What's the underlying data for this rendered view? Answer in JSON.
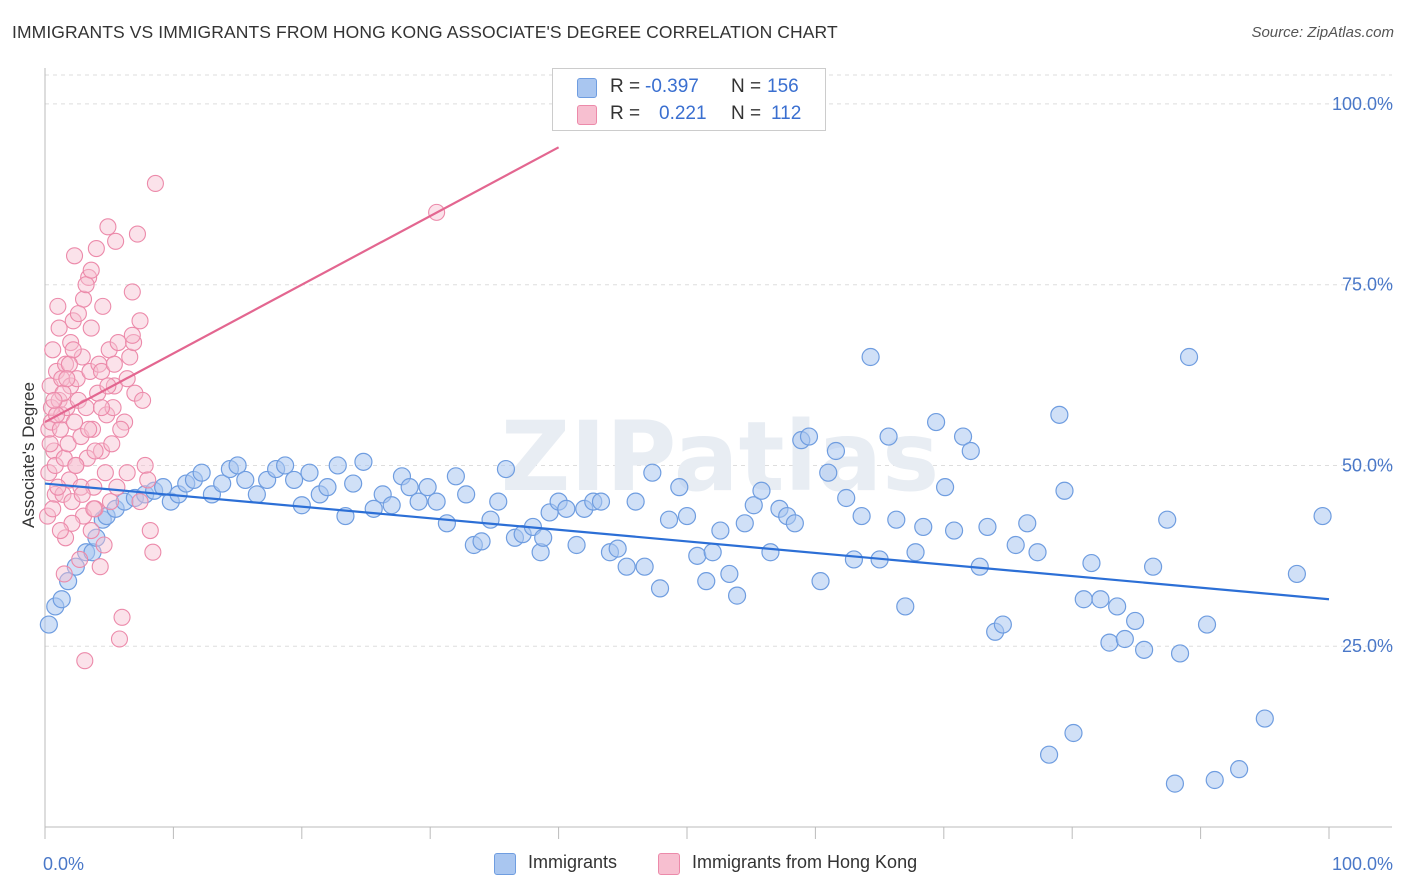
{
  "title": "IMMIGRANTS VS IMMIGRANTS FROM HONG KONG ASSOCIATE'S DEGREE CORRELATION CHART",
  "source": "Source: ZipAtlas.com",
  "watermark": "ZIPatlas",
  "legend": {
    "r_label": "R =",
    "n_label": "N =",
    "rows": [
      {
        "r": "-0.397",
        "n": "156"
      },
      {
        "r": "0.221",
        "n": "112"
      }
    ]
  },
  "chart_data": {
    "type": "scatter",
    "ylabel": "Associate's Degree",
    "xlabel": "",
    "xlim": [
      0,
      100
    ],
    "ylim": [
      0,
      104
    ],
    "x_tick_labels": [
      "0.0%",
      "100.0%"
    ],
    "y_tick_labels": [
      "25.0%",
      "50.0%",
      "75.0%",
      "100.0%"
    ],
    "y_ticks": [
      25,
      50,
      75,
      100
    ],
    "colors": {
      "immigrants_fill": "#a9c6f0",
      "immigrants_stroke": "#6f9de0",
      "immigrants_line": "#2c6fd6",
      "hk_fill": "#f7bfd0",
      "hk_stroke": "#ec8aaa",
      "hk_line": "#e36690"
    },
    "series": [
      {
        "name": "Immigrants",
        "r": -0.397,
        "n": 156,
        "trend": {
          "x0": 0,
          "y0": 47.5,
          "x1": 100,
          "y1": 31.5
        },
        "points": [
          [
            0.3,
            28
          ],
          [
            0.8,
            30.5
          ],
          [
            1.3,
            31.5
          ],
          [
            1.8,
            34
          ],
          [
            2.4,
            36
          ],
          [
            3.2,
            38
          ],
          [
            3.7,
            38
          ],
          [
            4,
            40
          ],
          [
            4.5,
            42.5
          ],
          [
            4.8,
            43
          ],
          [
            5.5,
            44
          ],
          [
            6.2,
            45
          ],
          [
            7,
            45.5
          ],
          [
            7.8,
            46
          ],
          [
            8.5,
            46.5
          ],
          [
            9.2,
            47
          ],
          [
            9.8,
            45
          ],
          [
            10.4,
            46
          ],
          [
            11,
            47.5
          ],
          [
            11.6,
            48
          ],
          [
            12.2,
            49
          ],
          [
            13,
            46
          ],
          [
            13.8,
            47.5
          ],
          [
            14.4,
            49.5
          ],
          [
            15,
            50
          ],
          [
            15.6,
            48
          ],
          [
            16.5,
            46
          ],
          [
            17.3,
            48
          ],
          [
            18,
            49.5
          ],
          [
            18.7,
            50
          ],
          [
            19.4,
            48
          ],
          [
            20,
            44.5
          ],
          [
            20.6,
            49
          ],
          [
            21.4,
            46
          ],
          [
            22,
            47
          ],
          [
            22.8,
            50
          ],
          [
            23.4,
            43
          ],
          [
            24,
            47.5
          ],
          [
            24.8,
            50.5
          ],
          [
            25.6,
            44
          ],
          [
            26.3,
            46
          ],
          [
            27,
            44.5
          ],
          [
            27.8,
            48.5
          ],
          [
            28.4,
            47
          ],
          [
            29.1,
            45
          ],
          [
            29.8,
            47
          ],
          [
            30.5,
            45
          ],
          [
            31.3,
            42
          ],
          [
            32,
            48.5
          ],
          [
            32.8,
            46
          ],
          [
            33.4,
            39
          ],
          [
            34,
            39.5
          ],
          [
            34.7,
            42.5
          ],
          [
            35.3,
            45
          ],
          [
            35.9,
            49.5
          ],
          [
            36.6,
            40
          ],
          [
            37.2,
            40.5
          ],
          [
            38,
            41.5
          ],
          [
            38.6,
            38
          ],
          [
            39.3,
            43.5
          ],
          [
            40,
            45
          ],
          [
            40.6,
            44
          ],
          [
            41.4,
            39
          ],
          [
            42,
            44
          ],
          [
            42.7,
            45
          ],
          [
            43.3,
            45
          ],
          [
            44,
            38
          ],
          [
            44.6,
            38.5
          ],
          [
            45.3,
            36
          ],
          [
            46,
            45
          ],
          [
            46.7,
            36
          ],
          [
            47.3,
            49
          ],
          [
            47.9,
            33
          ],
          [
            48.6,
            42.5
          ],
          [
            49.4,
            47
          ],
          [
            50,
            43
          ],
          [
            50.8,
            37.5
          ],
          [
            51.5,
            34
          ],
          [
            52,
            38
          ],
          [
            52.6,
            41
          ],
          [
            53.3,
            35
          ],
          [
            53.9,
            32
          ],
          [
            54.5,
            42
          ],
          [
            55.2,
            44.5
          ],
          [
            55.8,
            46.5
          ],
          [
            56.5,
            38
          ],
          [
            57.2,
            44
          ],
          [
            57.8,
            43
          ],
          [
            58.4,
            42
          ],
          [
            58.9,
            53.5
          ],
          [
            59.5,
            54
          ],
          [
            60.4,
            34
          ],
          [
            61,
            49
          ],
          [
            61.6,
            52
          ],
          [
            62.4,
            45.5
          ],
          [
            63,
            37
          ],
          [
            63.6,
            43
          ],
          [
            64.3,
            65
          ],
          [
            65,
            37
          ],
          [
            65.7,
            54
          ],
          [
            66.3,
            42.5
          ],
          [
            67,
            30.5
          ],
          [
            67.8,
            38
          ],
          [
            68.4,
            41.5
          ],
          [
            69.4,
            56
          ],
          [
            70.1,
            47
          ],
          [
            70.8,
            41
          ],
          [
            71.5,
            54
          ],
          [
            72.1,
            52
          ],
          [
            72.8,
            36
          ],
          [
            73.4,
            41.5
          ],
          [
            74,
            27
          ],
          [
            74.6,
            28
          ],
          [
            75.6,
            39
          ],
          [
            76.5,
            42
          ],
          [
            77.3,
            38
          ],
          [
            78.2,
            10
          ],
          [
            79,
            57
          ],
          [
            79.4,
            46.5
          ],
          [
            80.1,
            13
          ],
          [
            80.9,
            31.5
          ],
          [
            81.5,
            36.5
          ],
          [
            82.2,
            31.5
          ],
          [
            82.9,
            25.5
          ],
          [
            83.5,
            30.5
          ],
          [
            84.1,
            26
          ],
          [
            84.9,
            28.5
          ],
          [
            85.6,
            24.5
          ],
          [
            86.3,
            36
          ],
          [
            87.4,
            42.5
          ],
          [
            88,
            6
          ],
          [
            88.4,
            24
          ],
          [
            89.1,
            65
          ],
          [
            90.5,
            28
          ],
          [
            93,
            8
          ],
          [
            95,
            15
          ],
          [
            97.5,
            35
          ],
          [
            99.5,
            43
          ],
          [
            91.1,
            6.5
          ],
          [
            38.8,
            40
          ]
        ]
      },
      {
        "name": "Immigrants from Hong Kong",
        "r": 0.221,
        "n": 112,
        "trend": {
          "x0": 0,
          "y0": 56,
          "x1": 40,
          "y1": 94
        },
        "points": [
          [
            0.2,
            43
          ],
          [
            0.3,
            49
          ],
          [
            0.3,
            55
          ],
          [
            0.4,
            61
          ],
          [
            0.5,
            56
          ],
          [
            0.5,
            58
          ],
          [
            0.6,
            66
          ],
          [
            0.7,
            52
          ],
          [
            0.8,
            46
          ],
          [
            0.8,
            50
          ],
          [
            0.9,
            63
          ],
          [
            1,
            72
          ],
          [
            1.1,
            59
          ],
          [
            1.1,
            69
          ],
          [
            1.2,
            55
          ],
          [
            1.3,
            62
          ],
          [
            1.3,
            57
          ],
          [
            1.4,
            46
          ],
          [
            1.5,
            51
          ],
          [
            1.6,
            64
          ],
          [
            1.6,
            40
          ],
          [
            1.7,
            58
          ],
          [
            1.8,
            53
          ],
          [
            1.9,
            48
          ],
          [
            2,
            61
          ],
          [
            2,
            67
          ],
          [
            2.1,
            45
          ],
          [
            2.2,
            70
          ],
          [
            2.3,
            56
          ],
          [
            2.3,
            79
          ],
          [
            2.4,
            50
          ],
          [
            2.5,
            62
          ],
          [
            2.6,
            59
          ],
          [
            2.7,
            37
          ],
          [
            2.8,
            47
          ],
          [
            2.8,
            54
          ],
          [
            2.9,
            65
          ],
          [
            3,
            43
          ],
          [
            3,
            73
          ],
          [
            3.1,
            23
          ],
          [
            3.2,
            58
          ],
          [
            3.3,
            51
          ],
          [
            3.4,
            76
          ],
          [
            3.5,
            63
          ],
          [
            3.6,
            41
          ],
          [
            3.6,
            69
          ],
          [
            3.7,
            55
          ],
          [
            3.8,
            47
          ],
          [
            3.9,
            44
          ],
          [
            4,
            80
          ],
          [
            4.1,
            60
          ],
          [
            4.2,
            64
          ],
          [
            4.3,
            36
          ],
          [
            4.4,
            52
          ],
          [
            4.5,
            72
          ],
          [
            4.6,
            39
          ],
          [
            4.7,
            49
          ],
          [
            4.8,
            57
          ],
          [
            4.9,
            83
          ],
          [
            5,
            66
          ],
          [
            5.1,
            45
          ],
          [
            5.2,
            53
          ],
          [
            5.3,
            58
          ],
          [
            5.4,
            61
          ],
          [
            5.5,
            81
          ],
          [
            5.6,
            47
          ],
          [
            5.7,
            67
          ],
          [
            5.8,
            26
          ],
          [
            6,
            29
          ],
          [
            6.2,
            56
          ],
          [
            6.4,
            62
          ],
          [
            6.6,
            65
          ],
          [
            6.8,
            74
          ],
          [
            7,
            60
          ],
          [
            7.2,
            82
          ],
          [
            7.4,
            70
          ],
          [
            7.6,
            59
          ],
          [
            7.8,
            50
          ],
          [
            8,
            48
          ],
          [
            8.2,
            41
          ],
          [
            8.4,
            38
          ],
          [
            8.6,
            89
          ],
          [
            0.6,
            44
          ],
          [
            1,
            47
          ],
          [
            1.5,
            35
          ],
          [
            2.1,
            42
          ],
          [
            2.6,
            71
          ],
          [
            3.2,
            75
          ],
          [
            3.8,
            44
          ],
          [
            4.4,
            63
          ],
          [
            0.4,
            53
          ],
          [
            0.9,
            57
          ],
          [
            1.4,
            60
          ],
          [
            1.9,
            64
          ],
          [
            2.4,
            50
          ],
          [
            2.9,
            46
          ],
          [
            3.4,
            55
          ],
          [
            3.9,
            52
          ],
          [
            4.4,
            58
          ],
          [
            4.9,
            61
          ],
          [
            5.4,
            64
          ],
          [
            5.9,
            55
          ],
          [
            6.4,
            49
          ],
          [
            6.9,
            67
          ],
          [
            7.4,
            45
          ],
          [
            1.2,
            41
          ],
          [
            2.2,
            66
          ],
          [
            3.6,
            77
          ],
          [
            30.5,
            85
          ],
          [
            6.8,
            68
          ],
          [
            0.7,
            59
          ],
          [
            1.7,
            62
          ]
        ]
      }
    ]
  },
  "bottom_legend": [
    "Immigrants",
    "Immigrants from Hong Kong"
  ]
}
